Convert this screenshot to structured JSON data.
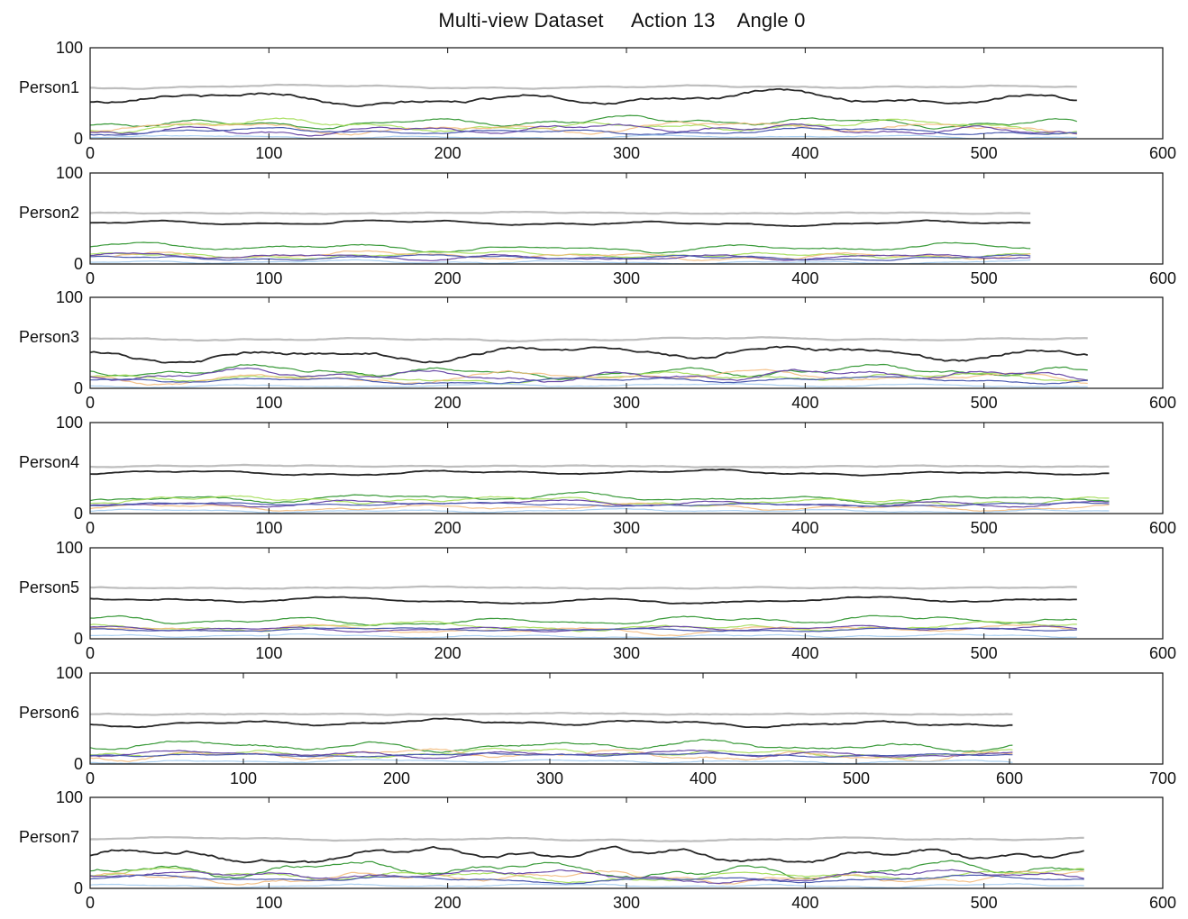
{
  "title": "Multi-view Dataset     Action 13    Angle 0",
  "colors": {
    "gray": "#bdbdbd",
    "black": "#262626",
    "green": "#3a9a3a",
    "lightgreen": "#9edb4c",
    "orange": "#f2b878",
    "purple": "#6a4aa8",
    "blue": "#4a5ab0",
    "lightblue": "#9cc8ee"
  },
  "chart_data": [
    {
      "type": "line",
      "ylabel": "Person1",
      "xlim": [
        0,
        600
      ],
      "ylim": [
        0,
        100
      ],
      "length": 552,
      "xticks": [
        "0",
        "100",
        "200",
        "300",
        "400",
        "500",
        "600"
      ],
      "yticks": [
        "0",
        "100"
      ],
      "series": [
        {
          "color": "gray",
          "level": 57,
          "amp": 2
        },
        {
          "color": "black",
          "level": 44,
          "amp": 8
        },
        {
          "color": "green",
          "level": 18,
          "amp": 6
        },
        {
          "color": "lightgreen",
          "level": 14,
          "amp": 7
        },
        {
          "color": "orange",
          "level": 12,
          "amp": 7
        },
        {
          "color": "purple",
          "level": 10,
          "amp": 6
        },
        {
          "color": "blue",
          "level": 8,
          "amp": 4
        },
        {
          "color": "lightblue",
          "level": 2,
          "amp": 2
        }
      ]
    },
    {
      "type": "line",
      "ylabel": "Person2",
      "xlim": [
        0,
        600
      ],
      "ylim": [
        0,
        100
      ],
      "length": 526,
      "xticks": [
        "0",
        "100",
        "200",
        "300",
        "400",
        "500",
        "600"
      ],
      "yticks": [
        "0",
        "100"
      ],
      "series": [
        {
          "color": "gray",
          "level": 56,
          "amp": 1
        },
        {
          "color": "black",
          "level": 45,
          "amp": 3
        },
        {
          "color": "green",
          "level": 18,
          "amp": 5
        },
        {
          "color": "lightgreen",
          "level": 10,
          "amp": 4
        },
        {
          "color": "orange",
          "level": 9,
          "amp": 5
        },
        {
          "color": "purple",
          "level": 8,
          "amp": 4
        },
        {
          "color": "blue",
          "level": 7,
          "amp": 3
        },
        {
          "color": "lightblue",
          "level": 2,
          "amp": 2
        }
      ]
    },
    {
      "type": "line",
      "ylabel": "Person3",
      "xlim": [
        0,
        600
      ],
      "ylim": [
        0,
        100
      ],
      "length": 558,
      "xticks": [
        "0",
        "100",
        "200",
        "300",
        "400",
        "500",
        "600"
      ],
      "yticks": [
        "0",
        "100"
      ],
      "series": [
        {
          "color": "gray",
          "level": 54,
          "amp": 2
        },
        {
          "color": "black",
          "level": 38,
          "amp": 9
        },
        {
          "color": "green",
          "level": 18,
          "amp": 7
        },
        {
          "color": "lightgreen",
          "level": 12,
          "amp": 6
        },
        {
          "color": "orange",
          "level": 12,
          "amp": 7
        },
        {
          "color": "purple",
          "level": 14,
          "amp": 7
        },
        {
          "color": "blue",
          "level": 9,
          "amp": 4
        },
        {
          "color": "lightblue",
          "level": 3,
          "amp": 2
        }
      ]
    },
    {
      "type": "line",
      "ylabel": "Person4",
      "xlim": [
        0,
        600
      ],
      "ylim": [
        0,
        100
      ],
      "length": 570,
      "xticks": [
        "0",
        "100",
        "200",
        "300",
        "400",
        "500",
        "600"
      ],
      "yticks": [
        "0",
        "100"
      ],
      "series": [
        {
          "color": "gray",
          "level": 52,
          "amp": 1
        },
        {
          "color": "black",
          "level": 45,
          "amp": 3
        },
        {
          "color": "green",
          "level": 17,
          "amp": 5
        },
        {
          "color": "lightgreen",
          "level": 14,
          "amp": 5
        },
        {
          "color": "orange",
          "level": 7,
          "amp": 4
        },
        {
          "color": "purple",
          "level": 11,
          "amp": 4
        },
        {
          "color": "blue",
          "level": 10,
          "amp": 2
        },
        {
          "color": "lightblue",
          "level": 3,
          "amp": 2
        }
      ]
    },
    {
      "type": "line",
      "ylabel": "Person5",
      "xlim": [
        0,
        600
      ],
      "ylim": [
        0,
        100
      ],
      "length": 552,
      "xticks": [
        "0",
        "100",
        "200",
        "300",
        "400",
        "500",
        "600"
      ],
      "yticks": [
        "0",
        "100"
      ],
      "series": [
        {
          "color": "gray",
          "level": 56,
          "amp": 1
        },
        {
          "color": "black",
          "level": 42,
          "amp": 4
        },
        {
          "color": "green",
          "level": 20,
          "amp": 5
        },
        {
          "color": "lightgreen",
          "level": 13,
          "amp": 5
        },
        {
          "color": "orange",
          "level": 10,
          "amp": 5
        },
        {
          "color": "purple",
          "level": 11,
          "amp": 3
        },
        {
          "color": "blue",
          "level": 10,
          "amp": 2
        },
        {
          "color": "lightblue",
          "level": 3,
          "amp": 2
        }
      ]
    },
    {
      "type": "line",
      "ylabel": "Person6",
      "xlim": [
        0,
        700
      ],
      "ylim": [
        0,
        100
      ],
      "length": 603,
      "xticks": [
        "0",
        "100",
        "200",
        "300",
        "400",
        "500",
        "600",
        "700"
      ],
      "yticks": [
        "0",
        "100"
      ],
      "series": [
        {
          "color": "gray",
          "level": 55,
          "amp": 1
        },
        {
          "color": "black",
          "level": 45,
          "amp": 4
        },
        {
          "color": "green",
          "level": 20,
          "amp": 6
        },
        {
          "color": "lightgreen",
          "level": 12,
          "amp": 5
        },
        {
          "color": "orange",
          "level": 10,
          "amp": 6
        },
        {
          "color": "purple",
          "level": 11,
          "amp": 4
        },
        {
          "color": "blue",
          "level": 10,
          "amp": 2
        },
        {
          "color": "lightblue",
          "level": 3,
          "amp": 2
        }
      ]
    },
    {
      "type": "line",
      "ylabel": "Person7",
      "xlim": [
        0,
        600
      ],
      "ylim": [
        0,
        100
      ],
      "length": 556,
      "xticks": [
        "0",
        "100",
        "200",
        "300",
        "400",
        "500",
        "600"
      ],
      "yticks": [
        "0",
        "100"
      ],
      "series": [
        {
          "color": "gray",
          "level": 54,
          "amp": 2
        },
        {
          "color": "black",
          "level": 37,
          "amp": 9
        },
        {
          "color": "green",
          "level": 20,
          "amp": 10
        },
        {
          "color": "lightgreen",
          "level": 14,
          "amp": 7
        },
        {
          "color": "orange",
          "level": 12,
          "amp": 7
        },
        {
          "color": "purple",
          "level": 14,
          "amp": 7
        },
        {
          "color": "blue",
          "level": 10,
          "amp": 4
        },
        {
          "color": "lightblue",
          "level": 3,
          "amp": 2
        }
      ]
    }
  ]
}
